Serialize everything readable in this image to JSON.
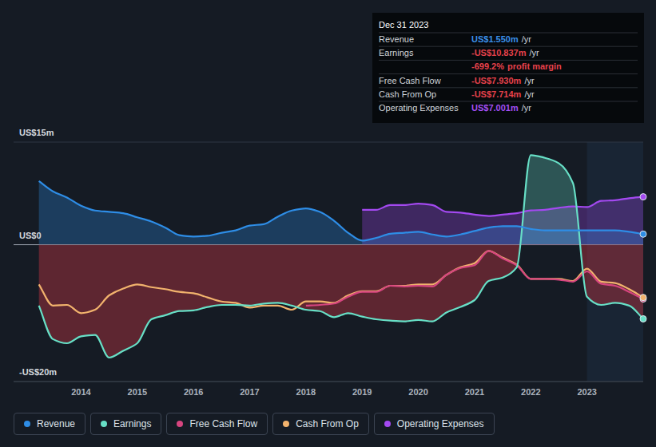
{
  "chart_data": {
    "type": "line",
    "x": [
      2013.25,
      2013.5,
      2013.75,
      2014,
      2014.25,
      2014.5,
      2014.75,
      2015,
      2015.25,
      2015.5,
      2015.75,
      2016,
      2016.25,
      2016.5,
      2016.75,
      2017,
      2017.25,
      2017.5,
      2017.75,
      2018,
      2018.25,
      2018.5,
      2018.75,
      2019,
      2019.25,
      2019.5,
      2019.75,
      2020,
      2020.25,
      2020.5,
      2020.75,
      2021,
      2021.25,
      2021.5,
      2021.75,
      2022,
      2022.25,
      2022.5,
      2022.75,
      2023,
      2023.25,
      2023.5,
      2023.75,
      2024
    ],
    "xlim": [
      2012.8,
      2024.0
    ],
    "xticks": [
      2014,
      2015,
      2016,
      2017,
      2018,
      2019,
      2020,
      2021,
      2022,
      2023
    ],
    "ylim": [
      -20,
      15
    ],
    "yticks": [
      {
        "value": 15,
        "label": "US$15m"
      },
      {
        "value": 0,
        "label": "US$0"
      },
      {
        "value": -20,
        "label": "-US$20m"
      }
    ],
    "grid": true,
    "legend": "bottom-left",
    "series": [
      {
        "name": "Revenue",
        "type": "area",
        "color": "#2e8de6",
        "marker": "end-dot",
        "values": [
          9.3,
          7.8,
          6.9,
          5.7,
          5.0,
          4.8,
          4.6,
          4.0,
          3.4,
          2.5,
          1.4,
          1.2,
          1.3,
          1.75,
          2.1,
          2.8,
          3.0,
          4.1,
          5.0,
          5.3,
          4.8,
          3.5,
          1.75,
          0.6,
          1.0,
          1.6,
          1.75,
          1.9,
          1.5,
          1.2,
          1.5,
          2.0,
          2.5,
          2.7,
          2.7,
          2.3,
          2.1,
          2.1,
          2.1,
          2.1,
          2.1,
          2.1,
          1.9,
          1.55
        ]
      },
      {
        "name": "Earnings",
        "type": "area",
        "color": "#67dfc6",
        "marker": "end-dot",
        "values": [
          -8.9,
          -13.8,
          -14.4,
          -13.4,
          -13.2,
          -16.5,
          -15.5,
          -14.4,
          -10.9,
          -10.3,
          -9.7,
          -9.6,
          -9.1,
          -8.8,
          -8.8,
          -8.9,
          -8.6,
          -8.5,
          -8.9,
          -9.5,
          -9.7,
          -10.6,
          -10.0,
          -10.5,
          -10.9,
          -11.1,
          -11.2,
          -11.0,
          -11.2,
          -9.9,
          -9.1,
          -8.1,
          -5.3,
          -4.8,
          -3.3,
          13.1,
          12.7,
          11.9,
          9.0,
          -7.6,
          -8.8,
          -8.5,
          -8.9,
          -10.837
        ]
      },
      {
        "name": "Free Cash Flow",
        "type": "line",
        "color": "#d6457f",
        "marker": "end-dot",
        "values": [
          null,
          null,
          null,
          null,
          null,
          null,
          null,
          null,
          null,
          null,
          null,
          null,
          null,
          null,
          null,
          null,
          null,
          null,
          null,
          -8.9,
          -8.8,
          -8.6,
          -7.6,
          -6.9,
          -6.9,
          -6.0,
          -6.1,
          -6.0,
          -6.1,
          -4.4,
          -3.4,
          -3.0,
          -0.9,
          -2.0,
          -3.0,
          -5.0,
          -5.0,
          -5.1,
          -5.4,
          -3.9,
          -5.7,
          -6.0,
          -6.9,
          -7.93
        ]
      },
      {
        "name": "Cash From Op",
        "type": "line",
        "color": "#f2b36d",
        "marker": "end-dot",
        "values": [
          -5.8,
          -8.9,
          -8.8,
          -10.0,
          -9.5,
          -7.4,
          -6.4,
          -5.8,
          -6.2,
          -6.5,
          -6.9,
          -7.1,
          -7.7,
          -8.3,
          -8.5,
          -9.2,
          -8.9,
          -8.9,
          -9.5,
          -8.3,
          -8.3,
          -8.5,
          -7.4,
          -6.8,
          -6.8,
          -6.0,
          -6.0,
          -5.8,
          -5.8,
          -4.4,
          -3.3,
          -2.7,
          -0.9,
          -1.9,
          -2.9,
          -5.0,
          -5.0,
          -5.0,
          -5.3,
          -3.5,
          -5.4,
          -5.6,
          -6.5,
          -7.714
        ]
      },
      {
        "name": "Operating Expenses",
        "type": "area",
        "color": "#a349f0",
        "marker": "end-dot",
        "values": [
          null,
          null,
          null,
          null,
          null,
          null,
          null,
          null,
          null,
          null,
          null,
          null,
          null,
          null,
          null,
          null,
          null,
          null,
          null,
          null,
          null,
          null,
          null,
          5.1,
          5.1,
          5.8,
          5.8,
          6.0,
          5.8,
          4.8,
          4.7,
          4.4,
          4.2,
          4.4,
          4.6,
          5.0,
          5.1,
          5.4,
          5.6,
          5.5,
          6.4,
          6.5,
          6.8,
          7.001
        ]
      }
    ],
    "annotation": {
      "title": "Dec 31 2023",
      "rows": [
        {
          "label": "Revenue",
          "value": "US$1.550m",
          "unit": "/yr",
          "color": "#3a8fe8"
        },
        {
          "label": "Earnings",
          "value": "-US$10.837m",
          "unit": "/yr",
          "color": "#e6414b"
        },
        {
          "value": "-699.2%",
          "text": "profit margin",
          "color": "#e6414b"
        },
        {
          "label": "Free Cash Flow",
          "value": "-US$7.930m",
          "unit": "/yr",
          "color": "#e6414b"
        },
        {
          "label": "Cash From Op",
          "value": "-US$7.714m",
          "unit": "/yr",
          "color": "#e6414b"
        },
        {
          "label": "Operating Expenses",
          "value": "US$7.001m",
          "unit": "/yr",
          "color": "#a34ef5"
        }
      ]
    }
  }
}
